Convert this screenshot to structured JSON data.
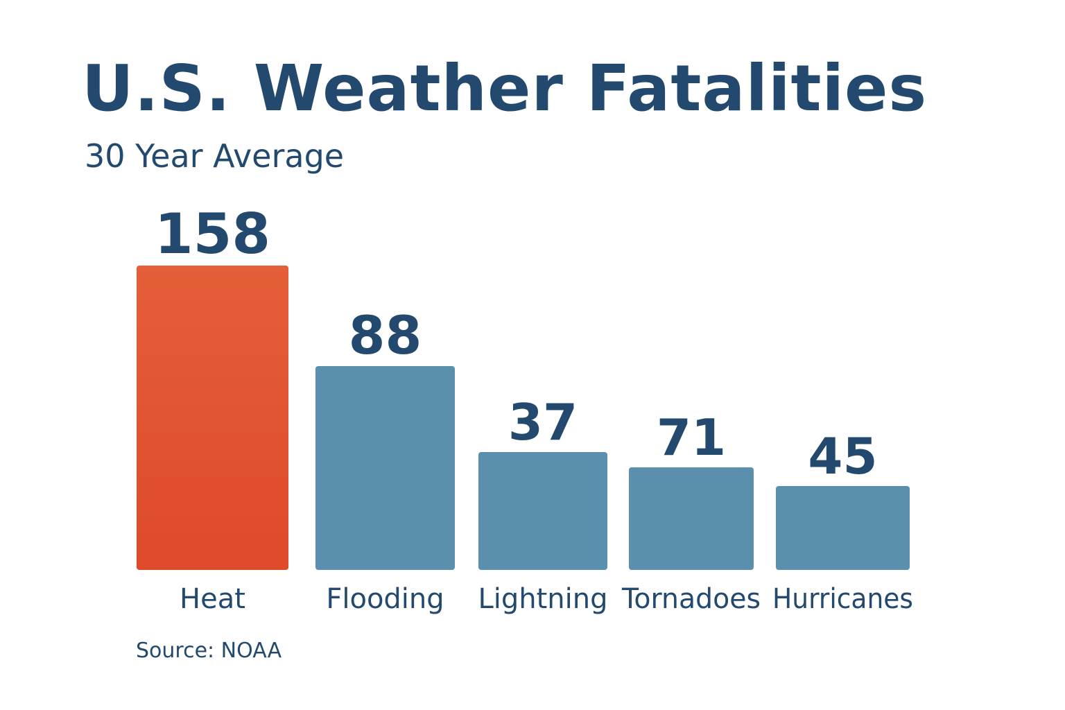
{
  "chart_data": {
    "type": "bar",
    "title": "U.S. Weather Fatalities",
    "subtitle": "30 Year Average",
    "source": "Source: NOAA",
    "categories": [
      "Heat",
      "Flooding",
      "Lightning",
      "Tornadoes",
      "Hurricanes"
    ],
    "values": [
      158,
      88,
      37,
      71,
      45
    ],
    "value_labels": [
      "158",
      "88",
      "37",
      "71",
      "45"
    ],
    "bar_colors": [
      "#e2532f",
      "#5b8fae",
      "#5b8fae",
      "#5b8fae",
      "#5b8fae"
    ],
    "text_color": "#234a6e",
    "xlabel": "",
    "ylabel": "",
    "grid": false,
    "legend": "none"
  }
}
